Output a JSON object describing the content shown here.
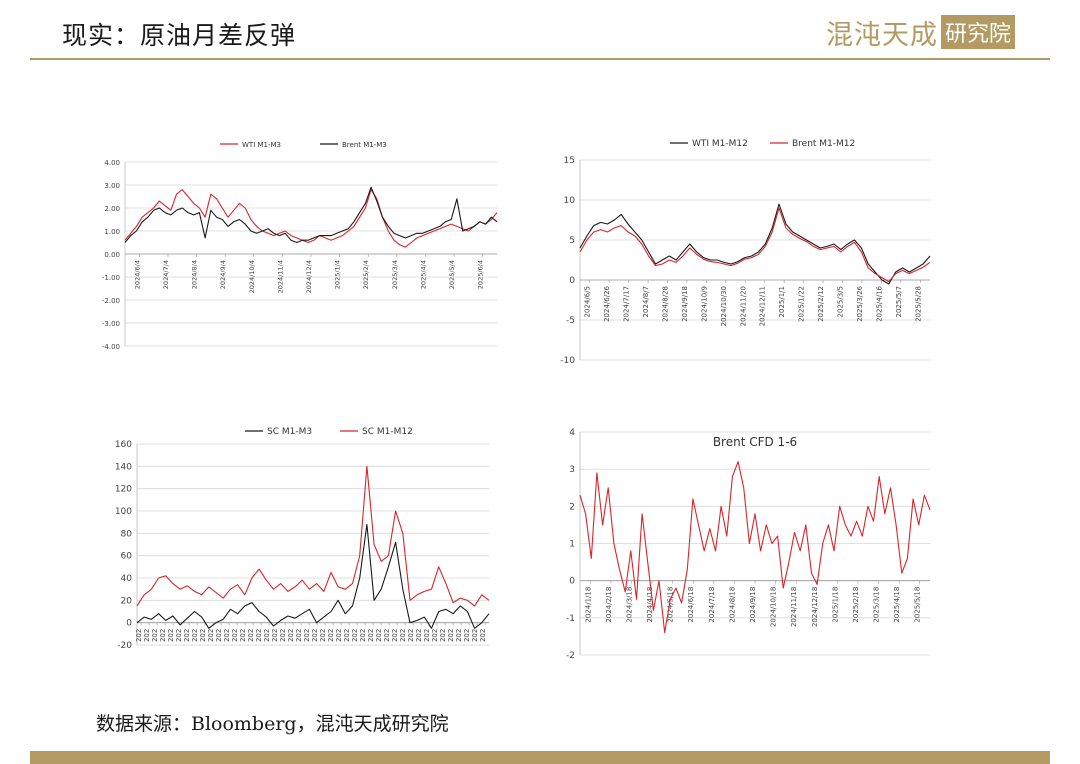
{
  "page": {
    "title": "现实：原油月差反弹",
    "logo_text": "混沌天成",
    "logo_box": "研究院",
    "source": "数据来源：Bloomberg，混沌天成研究院"
  },
  "colors": {
    "red": "#d9252a",
    "black": "#1a1a1a",
    "gold": "#b39a63",
    "grid": "#d9d9d9"
  },
  "chart_data": [
    {
      "type": "line",
      "title": "",
      "legend": "top",
      "grid": true,
      "ylim": [
        -4,
        4
      ],
      "yticks": [
        "4.00",
        "3.00",
        "2.00",
        "1.00",
        "0.00",
        "-1.00",
        "-2.00",
        "-3.00",
        "-4.00"
      ],
      "xticks": [
        "2024/6/4",
        "2024/7/4",
        "2024/8/4",
        "2024/9/4",
        "2024/10/4",
        "2024/11/4",
        "2024/12/4",
        "2025/1/4",
        "2025/2/4",
        "2025/3/4",
        "2025/4/4",
        "2025/5/4",
        "2025/6/4"
      ],
      "series": [
        {
          "name": "WTI M1-M3",
          "color": "#d9252a",
          "values": [
            0.6,
            0.9,
            1.2,
            1.6,
            1.8,
            2.0,
            2.3,
            2.1,
            1.9,
            2.6,
            2.8,
            2.5,
            2.2,
            2.0,
            1.6,
            2.6,
            2.4,
            2.0,
            1.6,
            1.9,
            2.2,
            2.0,
            1.5,
            1.2,
            1.0,
            0.9,
            0.8,
            0.9,
            1.0,
            0.8,
            0.7,
            0.6,
            0.5,
            0.6,
            0.8,
            0.7,
            0.6,
            0.7,
            0.8,
            1.0,
            1.2,
            1.6,
            2.0,
            2.8,
            2.4,
            1.6,
            1.0,
            0.6,
            0.4,
            0.3,
            0.5,
            0.7,
            0.8,
            0.9,
            1.0,
            1.1,
            1.2,
            1.3,
            1.2,
            1.1,
            1.0,
            1.2,
            1.4,
            1.3,
            1.5,
            1.8
          ]
        },
        {
          "name": "Brent M1-M3",
          "color": "#1a1a1a",
          "values": [
            0.5,
            0.8,
            1.0,
            1.4,
            1.6,
            1.9,
            2.0,
            1.8,
            1.7,
            1.9,
            2.0,
            1.8,
            1.7,
            1.8,
            0.7,
            1.9,
            1.6,
            1.5,
            1.2,
            1.4,
            1.5,
            1.3,
            1.0,
            0.9,
            1.0,
            1.1,
            0.9,
            0.8,
            0.9,
            0.6,
            0.5,
            0.6,
            0.6,
            0.7,
            0.8,
            0.8,
            0.8,
            0.9,
            1.0,
            1.1,
            1.4,
            1.8,
            2.2,
            2.9,
            2.3,
            1.6,
            1.2,
            0.9,
            0.8,
            0.7,
            0.8,
            0.9,
            0.9,
            1.0,
            1.1,
            1.2,
            1.4,
            1.5,
            2.4,
            1.0,
            1.1,
            1.2,
            1.4,
            1.3,
            1.6,
            1.4
          ]
        }
      ]
    },
    {
      "type": "line",
      "title": "",
      "legend": "top",
      "grid": true,
      "ylim": [
        -10,
        15
      ],
      "yticks": [
        "15",
        "10",
        "5",
        "0",
        "-5",
        "-10"
      ],
      "xticks": [
        "2024/6/5",
        "2024/6/26",
        "2024/7/17",
        "2024/8/7",
        "2024/8/28",
        "2024/9/18",
        "2024/10/9",
        "2024/10/30",
        "2024/11/20",
        "2024/12/11",
        "2025/1/1",
        "2025/1/22",
        "2025/2/12",
        "2025/3/5",
        "2025/3/26",
        "2025/4/16",
        "2025/5/7",
        "2025/5/28"
      ],
      "series": [
        {
          "name": "WTI M1-M12",
          "color": "#1a1a1a",
          "values": [
            4.0,
            5.5,
            6.8,
            7.2,
            7.0,
            7.5,
            8.2,
            7.0,
            6.0,
            5.0,
            3.5,
            2.0,
            2.5,
            3.0,
            2.5,
            3.5,
            4.5,
            3.5,
            2.8,
            2.5,
            2.5,
            2.2,
            2.0,
            2.3,
            2.8,
            3.0,
            3.5,
            4.5,
            6.5,
            9.5,
            7.0,
            6.0,
            5.5,
            5.0,
            4.5,
            4.0,
            4.2,
            4.5,
            3.8,
            4.5,
            5.0,
            4.0,
            2.0,
            1.0,
            0.0,
            -0.5,
            1.0,
            1.5,
            1.0,
            1.5,
            2.0,
            3.0
          ]
        },
        {
          "name": "Brent M1-M12",
          "color": "#d9252a",
          "values": [
            3.5,
            5.0,
            6.0,
            6.3,
            6.0,
            6.5,
            6.8,
            6.0,
            5.5,
            4.5,
            3.0,
            1.8,
            2.0,
            2.5,
            2.2,
            3.0,
            4.0,
            3.2,
            2.6,
            2.3,
            2.2,
            2.0,
            1.8,
            2.1,
            2.6,
            2.8,
            3.2,
            4.2,
            6.0,
            9.0,
            6.5,
            5.7,
            5.2,
            4.8,
            4.2,
            3.8,
            4.0,
            4.2,
            3.5,
            4.2,
            4.7,
            3.5,
            1.5,
            0.8,
            0.3,
            -0.2,
            0.8,
            1.2,
            0.8,
            1.2,
            1.6,
            2.2
          ]
        }
      ]
    },
    {
      "type": "line",
      "title": "",
      "legend": "top",
      "grid": true,
      "ylim": [
        -20,
        160
      ],
      "yticks": [
        "160",
        "140",
        "120",
        "100",
        "80",
        "60",
        "40",
        "20",
        "0",
        "-20"
      ],
      "xticks": [
        "202",
        "202",
        "202",
        "202",
        "202",
        "202",
        "202",
        "202",
        "202",
        "202",
        "202",
        "202",
        "202",
        "202",
        "202",
        "202",
        "202",
        "202",
        "202",
        "202",
        "202",
        "202",
        "202",
        "202",
        "202",
        "202",
        "202",
        "202",
        "202",
        "202",
        "202",
        "202",
        "202",
        "202",
        "202",
        "202",
        "202",
        "202",
        "202",
        "202",
        "202",
        "202",
        "202",
        "202"
      ],
      "series": [
        {
          "name": "SC M1-M3",
          "color": "#1a1a1a",
          "values": [
            0,
            5,
            3,
            8,
            2,
            6,
            -2,
            4,
            10,
            5,
            -5,
            0,
            3,
            12,
            8,
            15,
            18,
            10,
            5,
            -3,
            2,
            6,
            4,
            8,
            12,
            0,
            5,
            10,
            20,
            8,
            15,
            40,
            88,
            20,
            30,
            50,
            72,
            30,
            0,
            2,
            5,
            -5,
            10,
            12,
            8,
            15,
            10,
            -5,
            0,
            8
          ]
        },
        {
          "name": "SC M1-M12",
          "color": "#d9252a",
          "values": [
            15,
            25,
            30,
            40,
            42,
            35,
            30,
            33,
            28,
            25,
            32,
            27,
            22,
            30,
            34,
            25,
            40,
            48,
            38,
            30,
            35,
            28,
            32,
            38,
            30,
            35,
            28,
            45,
            32,
            30,
            35,
            60,
            140,
            70,
            55,
            60,
            100,
            80,
            20,
            25,
            28,
            30,
            50,
            35,
            18,
            22,
            20,
            15,
            25,
            20
          ]
        }
      ]
    },
    {
      "type": "line",
      "title": "Brent CFD 1-6",
      "legend": "none",
      "grid": true,
      "ylim": [
        -2,
        4
      ],
      "yticks": [
        "4",
        "3",
        "2",
        "1",
        "0",
        "-1",
        "-2"
      ],
      "xticks": [
        "2024/1/18",
        "2024/2/18",
        "2024/3/18",
        "2024/4/18",
        "2024/5/18",
        "2024/6/18",
        "2024/7/18",
        "2024/8/18",
        "2024/9/18",
        "2024/10/18",
        "2024/11/18",
        "2024/12/18",
        "2025/1/18",
        "2025/2/18",
        "2025/3/18",
        "2025/4/18",
        "2025/5/18"
      ],
      "series": [
        {
          "name": "",
          "color": "#d9252a",
          "values": [
            2.3,
            1.8,
            0.6,
            2.9,
            1.5,
            2.5,
            1.0,
            0.3,
            -0.3,
            0.8,
            -0.5,
            1.8,
            0.5,
            -0.8,
            0.0,
            -1.4,
            -0.5,
            -0.2,
            -0.6,
            0.3,
            2.2,
            1.5,
            0.8,
            1.4,
            0.8,
            2.0,
            1.2,
            2.8,
            3.2,
            2.5,
            1.0,
            1.8,
            0.8,
            1.5,
            1.0,
            1.2,
            -0.2,
            0.5,
            1.3,
            0.8,
            1.5,
            0.2,
            -0.1,
            1.0,
            1.5,
            0.8,
            2.0,
            1.5,
            1.2,
            1.6,
            1.2,
            2.0,
            1.6,
            2.8,
            1.8,
            2.5,
            1.5,
            0.2,
            0.6,
            2.2,
            1.5,
            2.3,
            1.9
          ]
        }
      ]
    }
  ]
}
